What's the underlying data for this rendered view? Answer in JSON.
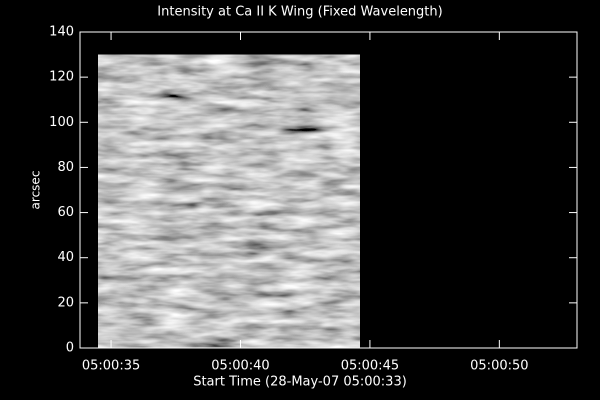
{
  "chart_data": {
    "type": "image",
    "title": "Intensity at Ca II K Wing (Fixed Wavelength)",
    "x_label": "Start Time (28-May-07 05:00:33)",
    "y_label": "arcsec",
    "xlim": [
      33.8,
      53
    ],
    "xticks": [
      {
        "value": 35,
        "label": "05:00:35"
      },
      {
        "value": 40,
        "label": "05:00:40"
      },
      {
        "value": 45,
        "label": "05:00:45"
      },
      {
        "value": 50,
        "label": "05:00:50"
      }
    ],
    "ylim": [
      0,
      140
    ],
    "yticks": [
      0,
      20,
      40,
      60,
      80,
      100,
      120,
      140
    ],
    "image": {
      "xlim": [
        34.5,
        44.6
      ],
      "ylim": [
        0,
        130
      ]
    }
  }
}
